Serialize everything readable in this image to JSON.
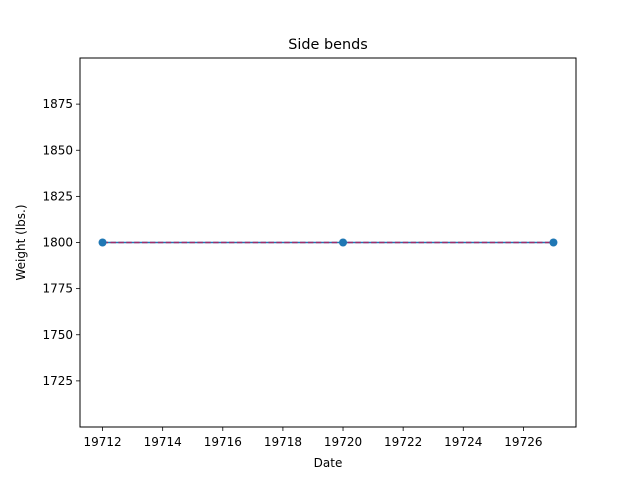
{
  "chart_data": {
    "type": "line",
    "title": "Side bends",
    "xlabel": "Date",
    "ylabel": "Weight (lbs.)",
    "x": [
      19712,
      19720,
      19727
    ],
    "series": [
      {
        "values": [
          1800,
          1800,
          1800
        ],
        "marker_color": "#1f77b4",
        "line_color": "#1f77b4"
      }
    ],
    "trend_line": {
      "values": [
        1800,
        1800,
        1800
      ],
      "color": "#9b2d6b",
      "style": "dashed"
    },
    "xlim": [
      19711.25,
      19727.75
    ],
    "ylim": [
      1700,
      1900
    ],
    "xticks": [
      19712,
      19714,
      19716,
      19718,
      19720,
      19722,
      19724,
      19726
    ],
    "yticks": [
      1725,
      1750,
      1775,
      1800,
      1825,
      1850,
      1875
    ],
    "grid": false,
    "legend": "none"
  }
}
